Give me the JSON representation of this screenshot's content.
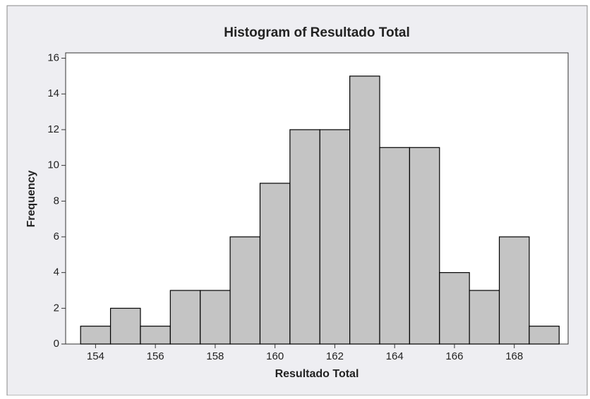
{
  "chart_data": {
    "type": "histogram",
    "title": "Histogram of Resultado Total",
    "x_label": "Resultado Total",
    "y_label": "Frequency",
    "bins": [
      153.5,
      154.5,
      155.5,
      156.5,
      157.5,
      158.5,
      159.5,
      160.5,
      161.5,
      162.5,
      163.5,
      164.5,
      165.5,
      166.5,
      167.5,
      168.5,
      169.5
    ],
    "values": [
      1,
      2,
      1,
      3,
      3,
      6,
      9,
      12,
      12,
      15,
      11,
      11,
      4,
      3,
      6,
      1
    ],
    "color": "#c4c4c4",
    "xlim": [
      153,
      169.8
    ],
    "xticks": [
      154,
      156,
      158,
      160,
      162,
      164,
      166,
      168
    ],
    "ylim": [
      0,
      16.3
    ],
    "yticks": [
      0,
      2,
      4,
      6,
      8,
      10,
      12,
      14,
      16
    ]
  }
}
